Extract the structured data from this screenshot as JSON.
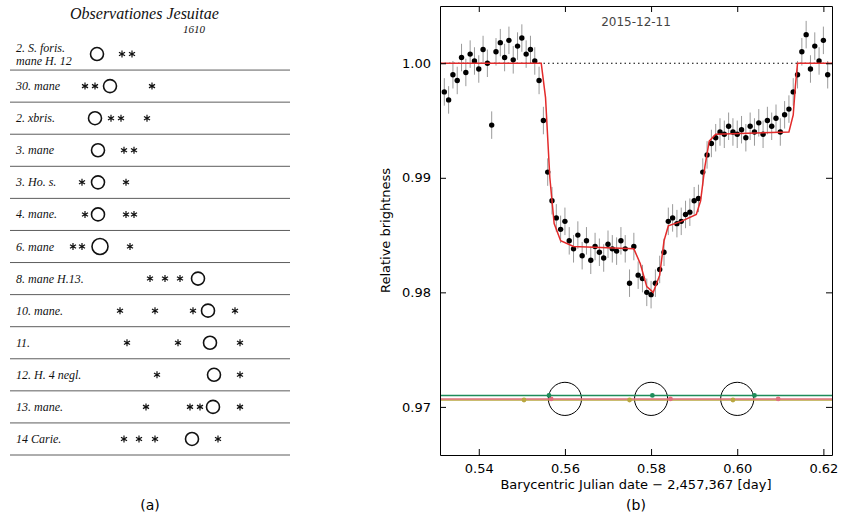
{
  "panel_labels": [
    "(a)",
    "(b)"
  ],
  "figure_a": {
    "title": "Observationes Jesuitae",
    "year": "1610",
    "rows": [
      {
        "label": [
          "2. S. foris.",
          "mane H. 12"
        ]
      },
      {
        "label": [
          "30. mane"
        ]
      },
      {
        "label": [
          "2. xbris."
        ]
      },
      {
        "label": [
          "3. mane"
        ]
      },
      {
        "label": [
          "3. Ho. s."
        ]
      },
      {
        "label": [
          "4. mane."
        ]
      },
      {
        "label": [
          "6. mane"
        ]
      },
      {
        "label": [
          "8. mane H.13."
        ]
      },
      {
        "label": [
          "10. mane."
        ]
      },
      {
        "label": [
          "11."
        ]
      },
      {
        "label": [
          "12. H. 4 negl."
        ]
      },
      {
        "label": [
          "13. mane."
        ]
      },
      {
        "label": [
          "14 Carie."
        ]
      }
    ]
  },
  "chart_data": {
    "type": "scatter",
    "title": "2015-12-11",
    "x_label": "Barycentric Julian date − 2,457,367 [day]",
    "y_label": "Relative brightness",
    "xlim": [
      0.531,
      0.622
    ],
    "ylim": [
      0.9658,
      1.005
    ],
    "xticks": [
      0.54,
      0.56,
      0.58,
      {
        "value": 0.6,
        "label": "0.60"
      },
      0.62
    ],
    "yticks": [
      0.97,
      0.98,
      0.99,
      {
        "value": 1,
        "label": "1.00"
      }
    ],
    "series": [
      {
        "type": "scatter",
        "color": "#000000",
        "marker": "circle",
        "x": [
          0.532,
          0.533,
          0.534,
          0.535,
          0.536,
          0.537,
          0.538,
          0.539,
          0.54,
          0.541,
          0.542,
          0.543,
          0.544,
          0.545,
          0.546,
          0.547,
          0.548,
          0.549,
          0.55,
          0.551,
          0.552,
          0.553,
          0.554,
          0.555,
          0.556,
          0.557,
          0.558,
          0.559,
          0.56,
          0.561,
          0.562,
          0.563,
          0.564,
          0.565,
          0.566,
          0.567,
          0.568,
          0.569,
          0.57,
          0.571,
          0.572,
          0.573,
          0.574,
          0.575,
          0.576,
          0.577,
          0.578,
          0.579,
          0.58,
          0.581,
          0.582,
          0.583,
          0.584,
          0.585,
          0.586,
          0.587,
          0.588,
          0.589,
          0.59,
          0.591,
          0.592,
          0.593,
          0.594,
          0.595,
          0.596,
          0.597,
          0.598,
          0.599,
          0.6,
          0.601,
          0.602,
          0.603,
          0.604,
          0.605,
          0.606,
          0.607,
          0.608,
          0.609,
          0.61,
          0.611,
          0.612,
          0.613,
          0.614,
          0.615,
          0.616,
          0.617,
          0.618,
          0.619,
          0.62,
          0.621
        ],
        "values": [
          0.9975,
          0.9968,
          0.999,
          0.9985,
          1.0005,
          0.9992,
          1.0008,
          1.0002,
          0.9995,
          1.0012,
          1.0,
          0.9946,
          1.001,
          1.0018,
          1.0005,
          1.002,
          1.0003,
          1.0015,
          1.0022,
          1.0008,
          1.0012,
          1.0002,
          0.9985,
          0.995,
          0.9905,
          0.988,
          0.9865,
          0.9855,
          0.9862,
          0.9845,
          0.9838,
          0.985,
          0.9832,
          0.9845,
          0.9828,
          0.984,
          0.9835,
          0.983,
          0.9842,
          0.9838,
          0.9836,
          0.9845,
          0.9838,
          0.9808,
          0.984,
          0.9815,
          0.9812,
          0.98,
          0.9798,
          0.9808,
          0.982,
          0.9835,
          0.9862,
          0.9865,
          0.986,
          0.9862,
          0.9868,
          0.987,
          0.988,
          0.9882,
          0.9905,
          0.992,
          0.993,
          0.9935,
          0.994,
          0.9938,
          0.9945,
          0.994,
          0.9938,
          0.9942,
          0.9935,
          0.9945,
          0.994,
          0.9948,
          0.9938,
          0.995,
          0.9945,
          0.9952,
          0.994,
          0.9955,
          0.996,
          0.9975,
          0.999,
          1.001,
          1.0025,
          0.9995,
          1.0015,
          1.0002,
          1.002,
          0.999
        ],
        "errors": [
          0.0012,
          0.0012,
          0.0012,
          0.0012,
          0.0012,
          0.0012,
          0.0012,
          0.0012,
          0.0012,
          0.0012,
          0.0012,
          0.0012,
          0.0012,
          0.0012,
          0.0012,
          0.0012,
          0.0012,
          0.0012,
          0.0012,
          0.0012,
          0.0012,
          0.0012,
          0.0012,
          0.0012,
          0.0012,
          0.0012,
          0.0012,
          0.0012,
          0.0012,
          0.0012,
          0.0012,
          0.0012,
          0.0012,
          0.0012,
          0.0012,
          0.0012,
          0.0012,
          0.0012,
          0.0012,
          0.0012,
          0.0012,
          0.0012,
          0.0012,
          0.0012,
          0.0012,
          0.0012,
          0.0012,
          0.0012,
          0.0012,
          0.0012,
          0.0012,
          0.0012,
          0.0012,
          0.0012,
          0.0012,
          0.0012,
          0.0012,
          0.0012,
          0.0012,
          0.0012,
          0.0012,
          0.0012,
          0.0012,
          0.0012,
          0.0012,
          0.0012,
          0.0012,
          0.0012,
          0.0012,
          0.0012,
          0.0012,
          0.0012,
          0.0012,
          0.0012,
          0.0012,
          0.0012,
          0.0012,
          0.0012,
          0.0012,
          0.0012,
          0.0012,
          0.0012,
          0.0012,
          0.0012,
          0.0012,
          0.0012,
          0.0012,
          0.0012,
          0.0012,
          0.0012
        ]
      },
      {
        "type": "line",
        "color": "#000000",
        "line_style": "dotted",
        "x": [
          0.531,
          0.622
        ],
        "values": [
          1,
          1
        ]
      },
      {
        "type": "line",
        "color": "#e32b2b",
        "line_style": "solid",
        "x": [
          0.531,
          0.5545,
          0.5555,
          0.5565,
          0.5575,
          0.559,
          0.562,
          0.576,
          0.5775,
          0.579,
          0.5805,
          0.582,
          0.583,
          0.584,
          0.587,
          0.5905,
          0.5915,
          0.5925,
          0.5935,
          0.595,
          0.612,
          0.613,
          0.6135,
          0.614,
          0.622
        ],
        "values": [
          1,
          1,
          0.997,
          0.99,
          0.986,
          0.9845,
          0.984,
          0.9838,
          0.9825,
          0.9805,
          0.98,
          0.9815,
          0.9845,
          0.9858,
          0.9862,
          0.9868,
          0.988,
          0.991,
          0.9932,
          0.9938,
          0.994,
          0.9955,
          0.998,
          1,
          1
        ]
      },
      {
        "type": "line",
        "color": "#1e8c5a",
        "line_style": "solid",
        "x": [
          0.531,
          0.622
        ],
        "values": [
          0.971,
          0.971
        ]
      },
      {
        "type": "line",
        "color": "#b9a640",
        "line_style": "solid",
        "x": [
          0.531,
          0.622
        ],
        "values": [
          0.9706,
          0.9706
        ]
      },
      {
        "type": "line",
        "color": "#e0707e",
        "line_style": "solid",
        "x": [
          0.531,
          0.622
        ],
        "values": [
          0.9707,
          0.9707
        ]
      },
      {
        "type": "scatter",
        "color": "#b9a640",
        "marker": "circle",
        "x": [
          0.5505,
          0.575,
          0.599
        ],
        "values": [
          0.9706,
          0.9706,
          0.9706
        ]
      },
      {
        "type": "scatter",
        "color": "#e0707e",
        "marker": "circle",
        "x": [
          0.5568,
          0.5845,
          0.6095
        ],
        "values": [
          0.9707,
          0.9707,
          0.9707
        ]
      },
      {
        "type": "scatter",
        "color": "#1e8c5a",
        "marker": "circle",
        "x": [
          0.5563,
          0.5803,
          0.604
        ],
        "values": [
          0.971,
          0.971,
          0.971
        ]
      }
    ],
    "star_disks": {
      "x": [
        0.56,
        0.58,
        0.6
      ],
      "y": 0.9707,
      "radius": 0.00385
    }
  }
}
